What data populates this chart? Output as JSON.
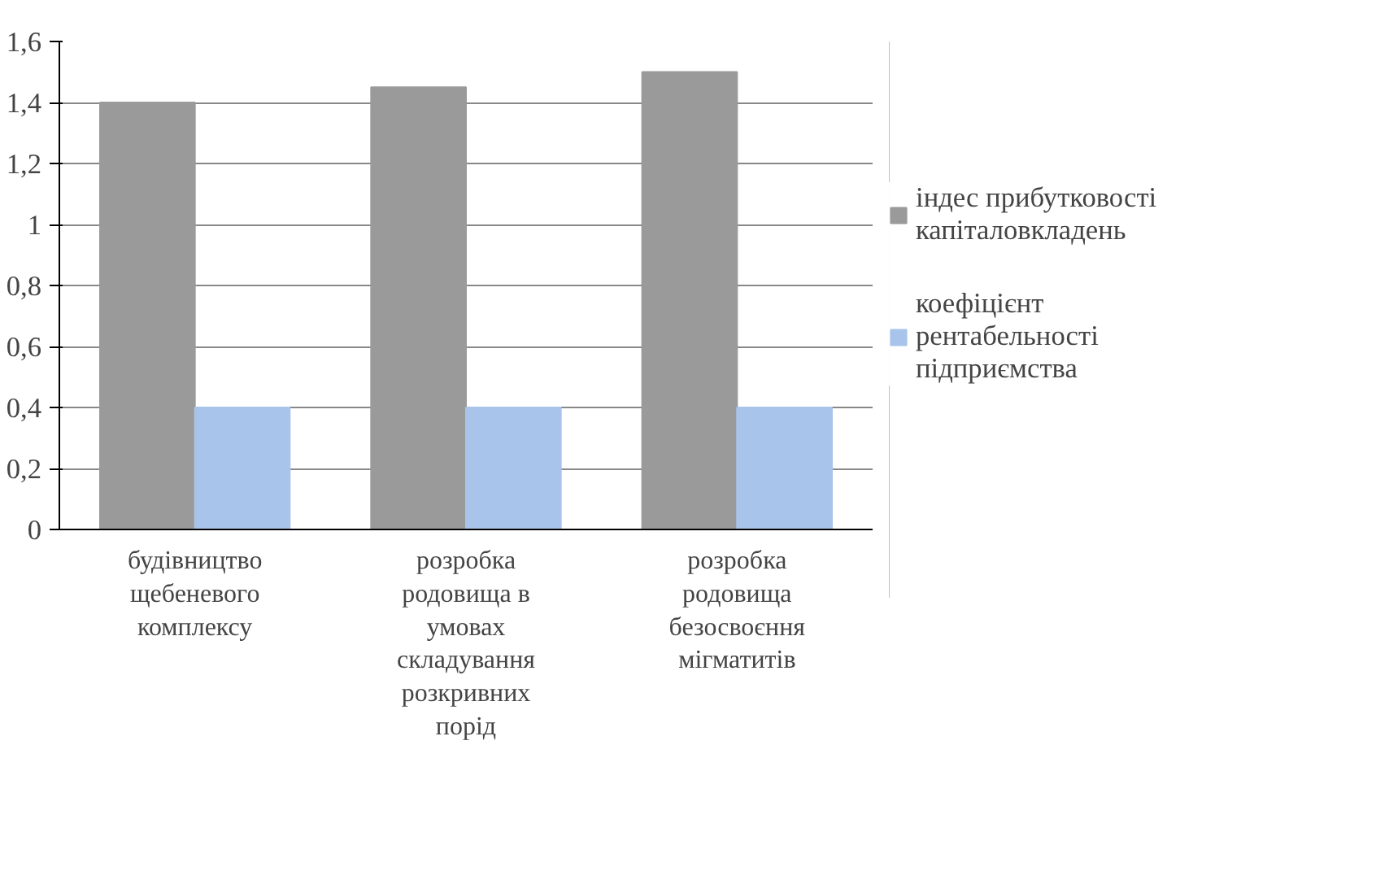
{
  "chart_data": {
    "type": "bar",
    "categories": [
      "будівництво щебеневого комплексу",
      "розробка родовища в умовах складування розкривних порід",
      "розробка родовища безосвоєння мігматитів"
    ],
    "series": [
      {
        "name": "індес прибутковості капіталовкладень",
        "color": "#9a9a9a",
        "values": [
          1.4,
          1.45,
          1.5
        ]
      },
      {
        "name": "коефіцієнт рентабельності підприємства",
        "color": "#a9c4ea",
        "values": [
          0.4,
          0.4,
          0.4
        ]
      }
    ],
    "ylim": [
      0,
      1.6
    ],
    "yticks": [
      0,
      {
        "value": 0.2,
        "label": "0,2"
      },
      {
        "value": 0.4,
        "label": "0,4"
      },
      {
        "value": 0.6,
        "label": "0,6"
      },
      {
        "value": 0.8,
        "label": "0,8"
      },
      1,
      {
        "value": 1.2,
        "label": "1,2"
      },
      {
        "value": 1.4,
        "label": "1,4"
      },
      {
        "value": 1.6,
        "label": "1,6"
      }
    ],
    "grid": "y",
    "legend": "right"
  }
}
